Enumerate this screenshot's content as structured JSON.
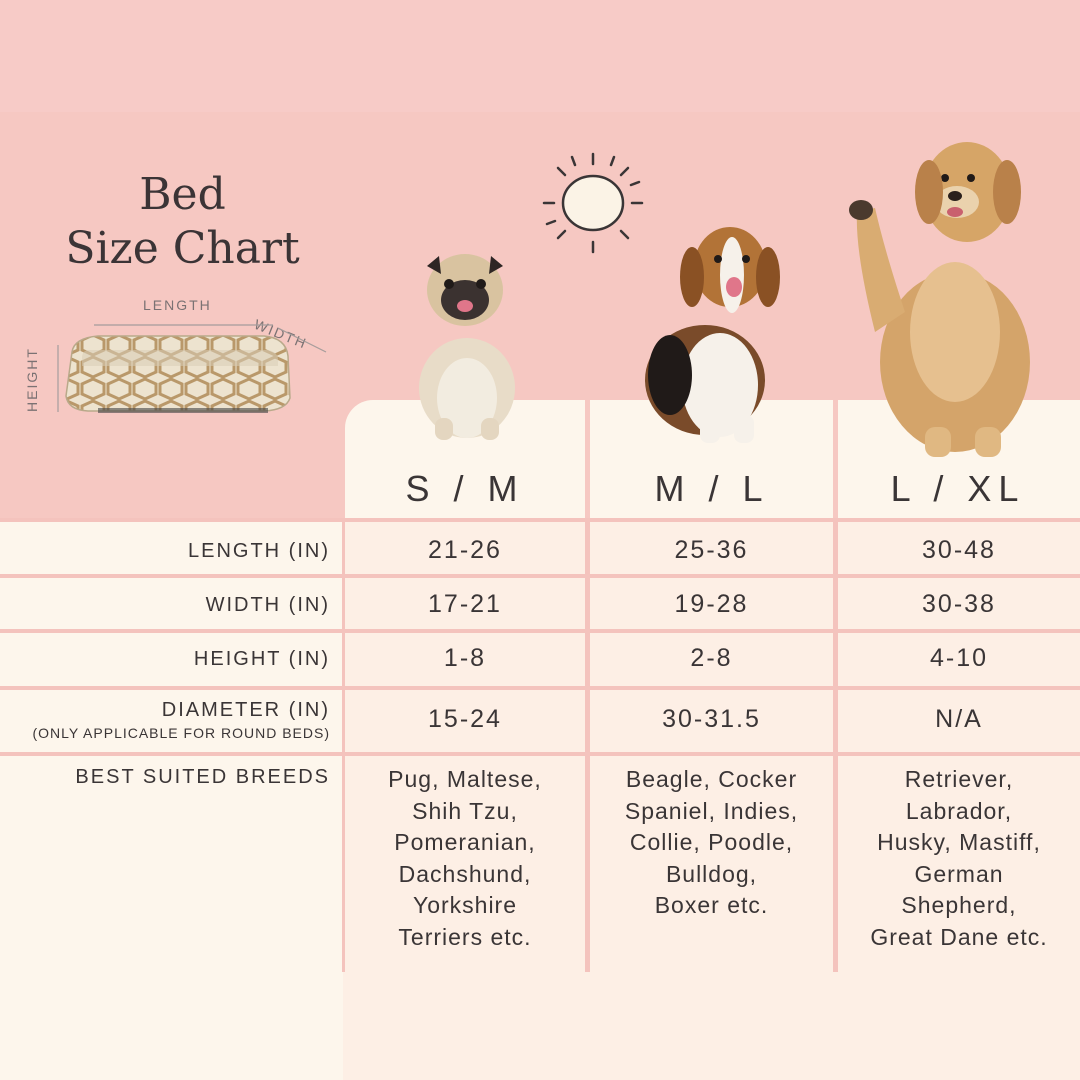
{
  "title": {
    "line1": "Bed",
    "line2": "Size Chart"
  },
  "bed_diagram": {
    "length_label": "LENGTH",
    "width_label": "WIDTH",
    "height_label": "HEIGHT"
  },
  "sizes": [
    "S / M",
    "M / L",
    "L / XL"
  ],
  "rows": [
    {
      "label": "LENGTH (IN)",
      "values": [
        "21-26",
        "25-36",
        "30-48"
      ]
    },
    {
      "label": "WIDTH (IN)",
      "values": [
        "17-21",
        "19-28",
        "30-38"
      ]
    },
    {
      "label": "HEIGHT (IN)",
      "values": [
        "1-8",
        "2-8",
        "4-10"
      ]
    },
    {
      "label": "DIAMETER (IN)",
      "sublabel": "(ONLY APPLICABLE FOR ROUND BEDS)",
      "values": [
        "15-24",
        "30-31.5",
        "N/A"
      ]
    }
  ],
  "breeds": {
    "label": "BEST SUITED BREEDS",
    "values": [
      [
        "Pug, Maltese,",
        "Shih Tzu,",
        "Pomeranian,",
        "Dachshund,",
        "Yorkshire",
        "Terriers etc."
      ],
      [
        "Beagle, Cocker",
        "Spaniel, Indies,",
        "Collie, Poodle,",
        "Bulldog,",
        "Boxer etc."
      ],
      [
        "Retriever,",
        "Labrador,",
        "Husky, Mastiff,",
        "German",
        "Shepherd,",
        "Great Dane etc."
      ]
    ]
  },
  "colors": {
    "pink_bg": "#f6c8c2",
    "cream": "#fdf6ec",
    "row_line": "#f4c3bd",
    "text": "#3a3536"
  },
  "icons": {
    "sun": "sun-icon",
    "bed": "bed-icon"
  }
}
